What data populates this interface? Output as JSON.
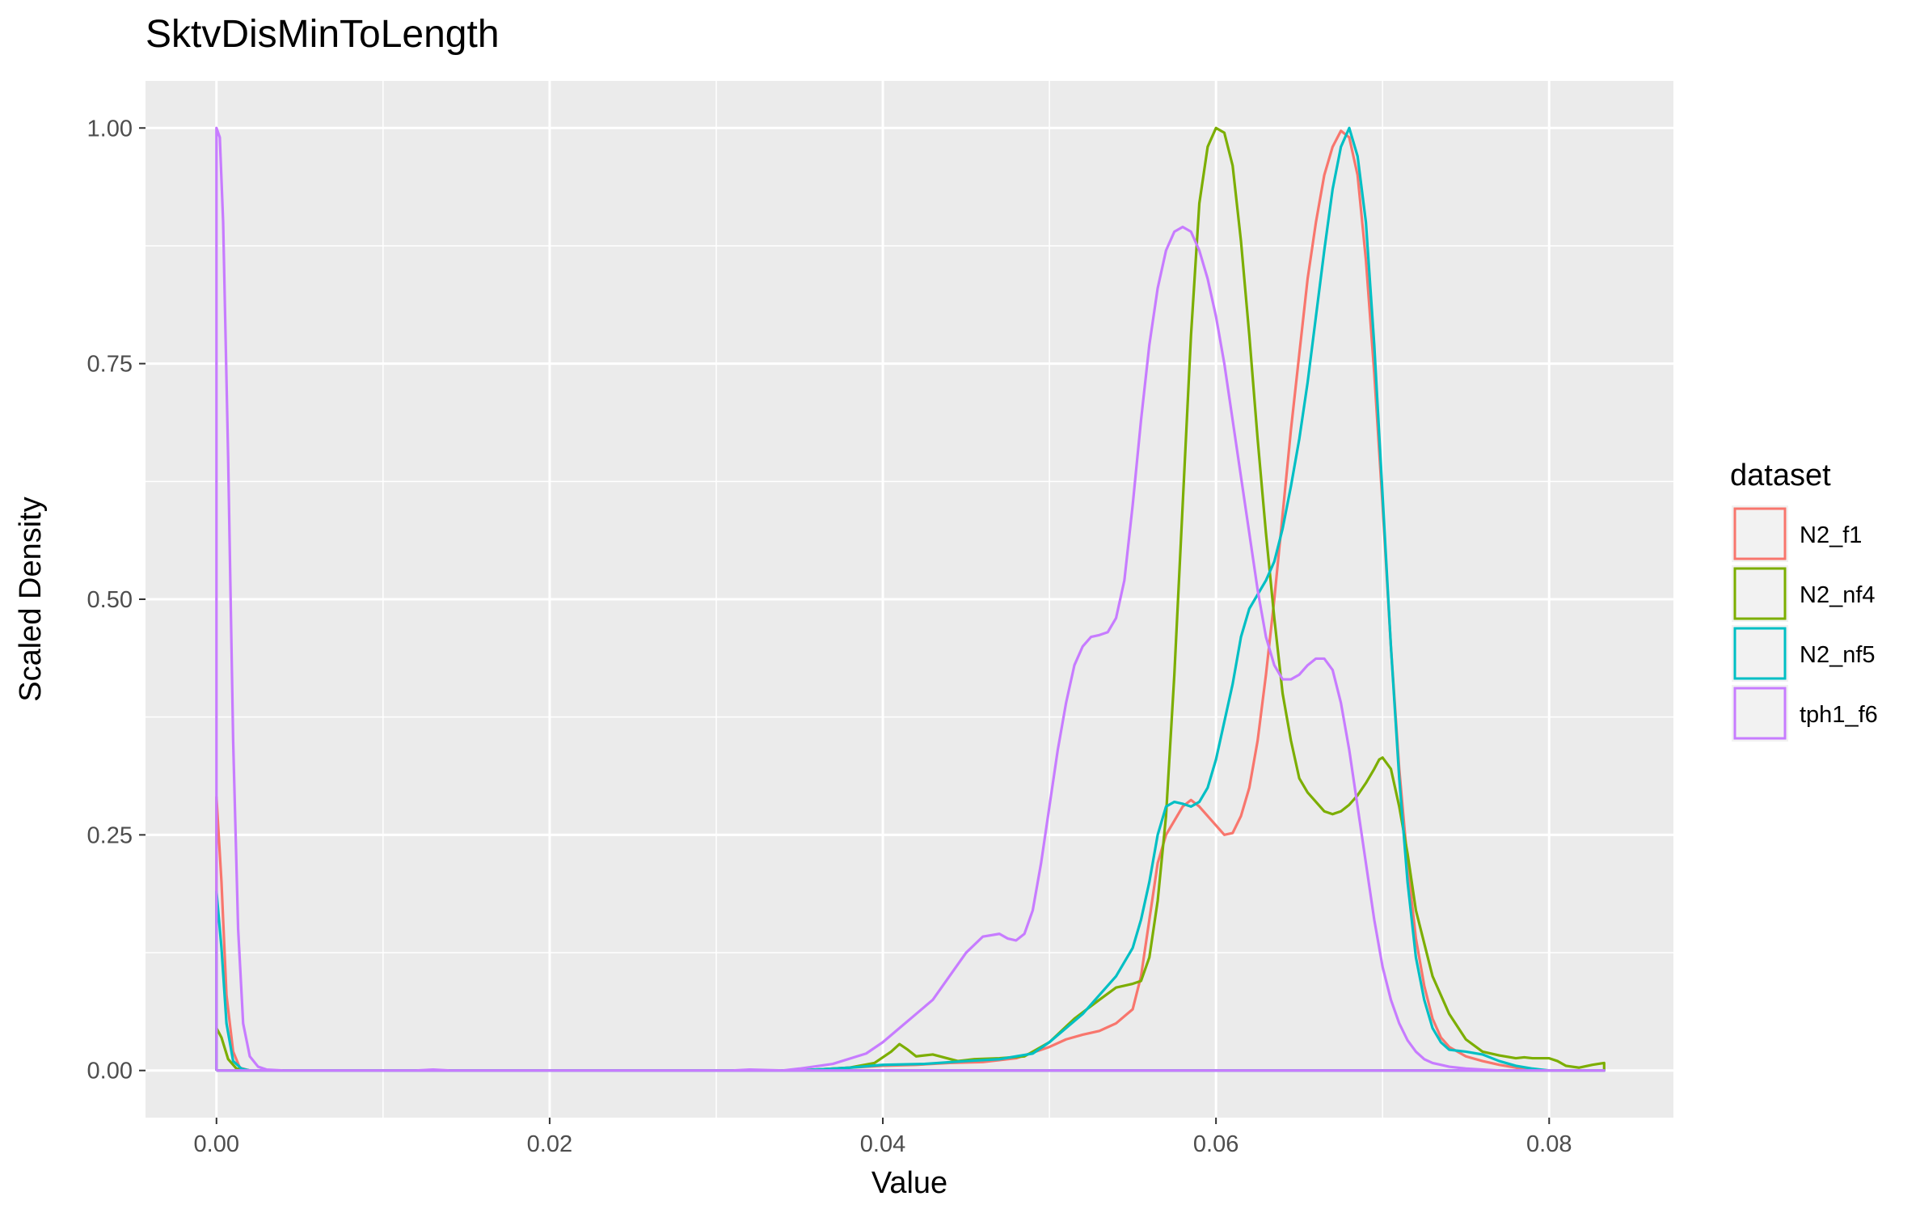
{
  "chart_data": {
    "type": "line",
    "title": "SktvDisMinToLength",
    "xlabel": "Value",
    "ylabel": "Scaled Density",
    "xlim": [
      -0.00426,
      0.08746
    ],
    "ylim": [
      -0.05,
      1.05
    ],
    "x_ticks": [
      0.0,
      0.02,
      0.04,
      0.06,
      0.08
    ],
    "x_tick_labels": [
      "0.00",
      "0.02",
      "0.04",
      "0.06",
      "0.08"
    ],
    "y_ticks": [
      0.0,
      0.25,
      0.5,
      0.75,
      1.0
    ],
    "y_tick_labels": [
      "0.00",
      "0.25",
      "0.50",
      "0.75",
      "1.00"
    ],
    "grid": true,
    "legend": {
      "title": "dataset",
      "position": "right"
    },
    "colors": {
      "panel": "#ebebeb",
      "grid": "#ffffff",
      "tick": "#333333"
    },
    "series": [
      {
        "name": "N2_f1",
        "color": "#F8766D",
        "points": [
          [
            0,
            0
          ],
          [
            0,
            0.29
          ],
          [
            0.0003,
            0.2
          ],
          [
            0.0006,
            0.08
          ],
          [
            0.001,
            0.02
          ],
          [
            0.0014,
            0.003
          ],
          [
            0.002,
            0
          ],
          [
            0.035,
            0
          ],
          [
            0.038,
            0.003
          ],
          [
            0.04,
            0.005
          ],
          [
            0.042,
            0.006
          ],
          [
            0.044,
            0.008
          ],
          [
            0.046,
            0.009
          ],
          [
            0.048,
            0.013
          ],
          [
            0.05,
            0.025
          ],
          [
            0.051,
            0.033
          ],
          [
            0.052,
            0.038
          ],
          [
            0.053,
            0.042
          ],
          [
            0.054,
            0.05
          ],
          [
            0.055,
            0.065
          ],
          [
            0.0555,
            0.1
          ],
          [
            0.056,
            0.16
          ],
          [
            0.0565,
            0.22
          ],
          [
            0.057,
            0.25
          ],
          [
            0.058,
            0.28
          ],
          [
            0.0585,
            0.287
          ],
          [
            0.059,
            0.28
          ],
          [
            0.0595,
            0.27
          ],
          [
            0.06,
            0.26
          ],
          [
            0.0605,
            0.25
          ],
          [
            0.061,
            0.252
          ],
          [
            0.0615,
            0.27
          ],
          [
            0.062,
            0.3
          ],
          [
            0.0625,
            0.35
          ],
          [
            0.063,
            0.42
          ],
          [
            0.0635,
            0.5
          ],
          [
            0.064,
            0.59
          ],
          [
            0.0645,
            0.68
          ],
          [
            0.065,
            0.76
          ],
          [
            0.0655,
            0.84
          ],
          [
            0.066,
            0.9
          ],
          [
            0.0665,
            0.95
          ],
          [
            0.067,
            0.98
          ],
          [
            0.0675,
            0.997
          ],
          [
            0.068,
            0.99
          ],
          [
            0.0685,
            0.95
          ],
          [
            0.069,
            0.86
          ],
          [
            0.0695,
            0.74
          ],
          [
            0.07,
            0.6
          ],
          [
            0.0705,
            0.45
          ],
          [
            0.071,
            0.32
          ],
          [
            0.0715,
            0.22
          ],
          [
            0.072,
            0.14
          ],
          [
            0.0725,
            0.09
          ],
          [
            0.073,
            0.055
          ],
          [
            0.0735,
            0.035
          ],
          [
            0.074,
            0.025
          ],
          [
            0.075,
            0.015
          ],
          [
            0.076,
            0.01
          ],
          [
            0.077,
            0.006
          ],
          [
            0.078,
            0.003
          ],
          [
            0.079,
            0.001
          ],
          [
            0.08,
            0
          ],
          [
            0.0833,
            0
          ],
          [
            0,
            0
          ]
        ]
      },
      {
        "name": "N2_nf4",
        "color": "#7CAE00",
        "points": [
          [
            0,
            0
          ],
          [
            0,
            0.045
          ],
          [
            0.0003,
            0.035
          ],
          [
            0.0007,
            0.012
          ],
          [
            0.0012,
            0.002
          ],
          [
            0.002,
            0
          ],
          [
            0.035,
            0
          ],
          [
            0.038,
            0.003
          ],
          [
            0.0395,
            0.008
          ],
          [
            0.0405,
            0.02
          ],
          [
            0.041,
            0.028
          ],
          [
            0.0415,
            0.022
          ],
          [
            0.042,
            0.015
          ],
          [
            0.043,
            0.017
          ],
          [
            0.0445,
            0.01
          ],
          [
            0.0455,
            0.012
          ],
          [
            0.047,
            0.013
          ],
          [
            0.0485,
            0.015
          ],
          [
            0.05,
            0.03
          ],
          [
            0.0515,
            0.055
          ],
          [
            0.053,
            0.075
          ],
          [
            0.054,
            0.088
          ],
          [
            0.055,
            0.092
          ],
          [
            0.0555,
            0.095
          ],
          [
            0.056,
            0.12
          ],
          [
            0.0565,
            0.18
          ],
          [
            0.057,
            0.27
          ],
          [
            0.0575,
            0.42
          ],
          [
            0.058,
            0.6
          ],
          [
            0.0585,
            0.78
          ],
          [
            0.059,
            0.92
          ],
          [
            0.0595,
            0.98
          ],
          [
            0.06,
            1.0
          ],
          [
            0.0605,
            0.995
          ],
          [
            0.061,
            0.96
          ],
          [
            0.0615,
            0.88
          ],
          [
            0.062,
            0.78
          ],
          [
            0.0625,
            0.67
          ],
          [
            0.063,
            0.57
          ],
          [
            0.0635,
            0.48
          ],
          [
            0.064,
            0.4
          ],
          [
            0.0645,
            0.35
          ],
          [
            0.065,
            0.31
          ],
          [
            0.0655,
            0.295
          ],
          [
            0.066,
            0.285
          ],
          [
            0.0665,
            0.275
          ],
          [
            0.067,
            0.272
          ],
          [
            0.0675,
            0.275
          ],
          [
            0.068,
            0.282
          ],
          [
            0.0685,
            0.292
          ],
          [
            0.069,
            0.305
          ],
          [
            0.0695,
            0.32
          ],
          [
            0.0698,
            0.33
          ],
          [
            0.07,
            0.332
          ],
          [
            0.0705,
            0.32
          ],
          [
            0.071,
            0.28
          ],
          [
            0.0715,
            0.23
          ],
          [
            0.072,
            0.17
          ],
          [
            0.073,
            0.1
          ],
          [
            0.074,
            0.06
          ],
          [
            0.075,
            0.033
          ],
          [
            0.076,
            0.02
          ],
          [
            0.077,
            0.016
          ],
          [
            0.078,
            0.013
          ],
          [
            0.0785,
            0.014
          ],
          [
            0.079,
            0.013
          ],
          [
            0.08,
            0.013
          ],
          [
            0.0805,
            0.01
          ],
          [
            0.081,
            0.005
          ],
          [
            0.0818,
            0.003
          ],
          [
            0.0826,
            0.006
          ],
          [
            0.0833,
            0.008
          ],
          [
            0.0833,
            0
          ],
          [
            0,
            0
          ]
        ]
      },
      {
        "name": "N2_nf5",
        "color": "#00BFC4",
        "points": [
          [
            0,
            0
          ],
          [
            0,
            0.19
          ],
          [
            0.0003,
            0.13
          ],
          [
            0.0006,
            0.05
          ],
          [
            0.001,
            0.01
          ],
          [
            0.0015,
            0.002
          ],
          [
            0.002,
            0
          ],
          [
            0.035,
            0
          ],
          [
            0.038,
            0.003
          ],
          [
            0.04,
            0.006
          ],
          [
            0.0425,
            0.007
          ],
          [
            0.045,
            0.01
          ],
          [
            0.047,
            0.012
          ],
          [
            0.049,
            0.018
          ],
          [
            0.05,
            0.03
          ],
          [
            0.051,
            0.045
          ],
          [
            0.052,
            0.06
          ],
          [
            0.053,
            0.08
          ],
          [
            0.054,
            0.1
          ],
          [
            0.055,
            0.13
          ],
          [
            0.0555,
            0.16
          ],
          [
            0.056,
            0.2
          ],
          [
            0.0565,
            0.25
          ],
          [
            0.057,
            0.28
          ],
          [
            0.0575,
            0.285
          ],
          [
            0.058,
            0.283
          ],
          [
            0.0585,
            0.28
          ],
          [
            0.059,
            0.285
          ],
          [
            0.0595,
            0.3
          ],
          [
            0.06,
            0.33
          ],
          [
            0.0605,
            0.37
          ],
          [
            0.061,
            0.41
          ],
          [
            0.0615,
            0.46
          ],
          [
            0.062,
            0.49
          ],
          [
            0.0625,
            0.505
          ],
          [
            0.063,
            0.52
          ],
          [
            0.0635,
            0.54
          ],
          [
            0.064,
            0.575
          ],
          [
            0.0645,
            0.62
          ],
          [
            0.065,
            0.67
          ],
          [
            0.0655,
            0.73
          ],
          [
            0.066,
            0.8
          ],
          [
            0.0665,
            0.87
          ],
          [
            0.067,
            0.935
          ],
          [
            0.0675,
            0.98
          ],
          [
            0.068,
            1.0
          ],
          [
            0.0685,
            0.97
          ],
          [
            0.069,
            0.9
          ],
          [
            0.0695,
            0.77
          ],
          [
            0.07,
            0.61
          ],
          [
            0.0705,
            0.45
          ],
          [
            0.071,
            0.31
          ],
          [
            0.0715,
            0.2
          ],
          [
            0.072,
            0.12
          ],
          [
            0.0725,
            0.075
          ],
          [
            0.073,
            0.045
          ],
          [
            0.0735,
            0.03
          ],
          [
            0.074,
            0.022
          ],
          [
            0.075,
            0.02
          ],
          [
            0.076,
            0.017
          ],
          [
            0.077,
            0.01
          ],
          [
            0.078,
            0.005
          ],
          [
            0.079,
            0.002
          ],
          [
            0.08,
            0
          ],
          [
            0.0833,
            0
          ],
          [
            0,
            0
          ]
        ]
      },
      {
        "name": "tph1_f6",
        "color": "#C77CFF",
        "points": [
          [
            0,
            0
          ],
          [
            0,
            1.0
          ],
          [
            0.0002,
            0.99
          ],
          [
            0.0004,
            0.9
          ],
          [
            0.0007,
            0.65
          ],
          [
            0.001,
            0.35
          ],
          [
            0.0013,
            0.15
          ],
          [
            0.0016,
            0.05
          ],
          [
            0.002,
            0.015
          ],
          [
            0.0025,
            0.004
          ],
          [
            0.003,
            0.001
          ],
          [
            0.004,
            0
          ],
          [
            0.012,
            0
          ],
          [
            0.013,
            0.001
          ],
          [
            0.014,
            0
          ],
          [
            0.031,
            0
          ],
          [
            0.032,
            0.001
          ],
          [
            0.034,
            0
          ],
          [
            0.035,
            0.002
          ],
          [
            0.037,
            0.007
          ],
          [
            0.039,
            0.018
          ],
          [
            0.04,
            0.03
          ],
          [
            0.041,
            0.045
          ],
          [
            0.042,
            0.06
          ],
          [
            0.043,
            0.075
          ],
          [
            0.044,
            0.1
          ],
          [
            0.045,
            0.125
          ],
          [
            0.046,
            0.142
          ],
          [
            0.047,
            0.145
          ],
          [
            0.0475,
            0.14
          ],
          [
            0.048,
            0.138
          ],
          [
            0.0485,
            0.145
          ],
          [
            0.049,
            0.17
          ],
          [
            0.0495,
            0.22
          ],
          [
            0.05,
            0.28
          ],
          [
            0.0505,
            0.34
          ],
          [
            0.051,
            0.39
          ],
          [
            0.0515,
            0.43
          ],
          [
            0.052,
            0.45
          ],
          [
            0.0525,
            0.46
          ],
          [
            0.053,
            0.462
          ],
          [
            0.0535,
            0.465
          ],
          [
            0.054,
            0.48
          ],
          [
            0.0545,
            0.52
          ],
          [
            0.055,
            0.6
          ],
          [
            0.0555,
            0.69
          ],
          [
            0.056,
            0.77
          ],
          [
            0.0565,
            0.83
          ],
          [
            0.057,
            0.87
          ],
          [
            0.0575,
            0.89
          ],
          [
            0.058,
            0.895
          ],
          [
            0.0585,
            0.89
          ],
          [
            0.059,
            0.87
          ],
          [
            0.0595,
            0.84
          ],
          [
            0.06,
            0.8
          ],
          [
            0.0605,
            0.75
          ],
          [
            0.061,
            0.69
          ],
          [
            0.0615,
            0.63
          ],
          [
            0.062,
            0.57
          ],
          [
            0.0625,
            0.51
          ],
          [
            0.063,
            0.46
          ],
          [
            0.0635,
            0.43
          ],
          [
            0.064,
            0.415
          ],
          [
            0.0645,
            0.415
          ],
          [
            0.065,
            0.42
          ],
          [
            0.0655,
            0.43
          ],
          [
            0.066,
            0.437
          ],
          [
            0.0665,
            0.437
          ],
          [
            0.067,
            0.425
          ],
          [
            0.0675,
            0.39
          ],
          [
            0.068,
            0.34
          ],
          [
            0.0685,
            0.28
          ],
          [
            0.069,
            0.22
          ],
          [
            0.0695,
            0.16
          ],
          [
            0.07,
            0.11
          ],
          [
            0.0705,
            0.075
          ],
          [
            0.071,
            0.05
          ],
          [
            0.0715,
            0.032
          ],
          [
            0.072,
            0.02
          ],
          [
            0.0725,
            0.012
          ],
          [
            0.073,
            0.008
          ],
          [
            0.074,
            0.004
          ],
          [
            0.075,
            0.002
          ],
          [
            0.076,
            0.001
          ],
          [
            0.077,
            0
          ],
          [
            0.0833,
            0
          ],
          [
            0,
            0
          ]
        ]
      }
    ]
  }
}
